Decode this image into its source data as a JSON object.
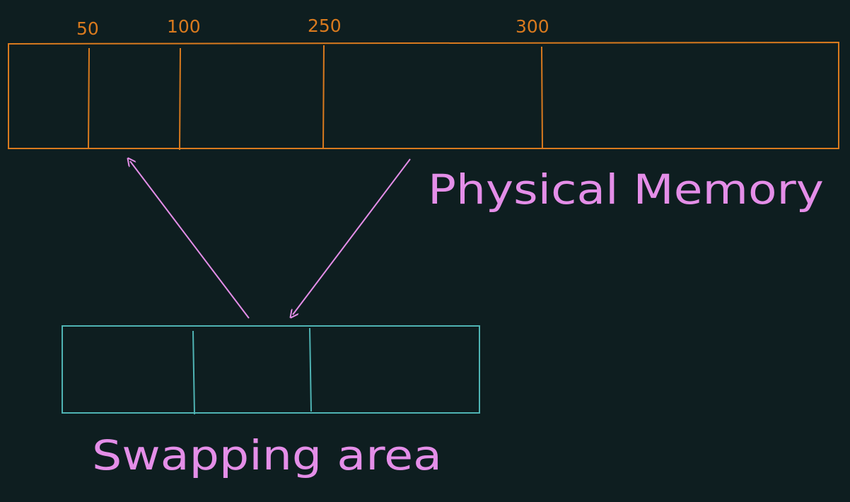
{
  "colors": {
    "background": "#0e1e20",
    "physical_memory_stroke": "#d97a1e",
    "swap_area_stroke": "#4fb3b3",
    "arrow_and_label": "#e48ee8"
  },
  "physical_memory": {
    "label": "Physical Memory",
    "markers": [
      "50",
      "100",
      "250",
      "300"
    ]
  },
  "swapping_area": {
    "label": "Swapping area",
    "slot_count": 3
  },
  "arrows": [
    {
      "name": "swap-in-arrow",
      "from": "swapping_area",
      "to": "physical_memory"
    },
    {
      "name": "swap-out-arrow",
      "from": "physical_memory",
      "to": "swapping_area"
    }
  ]
}
